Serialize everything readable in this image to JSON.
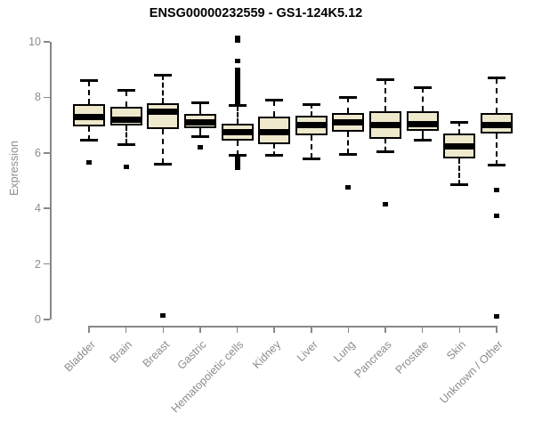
{
  "title": "ENSG00000232559 - GS1-124K5.12",
  "colors": {
    "background": "#ffffff",
    "box_fill": "#eee8cd",
    "box_border": "#000000",
    "median": "#000000",
    "axis": "#888888",
    "axis_text": "#8c8c8c",
    "title_text": "#000000"
  },
  "chart_data": {
    "type": "boxplot",
    "title": "ENSG00000232559 - GS1-124K5.12",
    "xlabel": "",
    "ylabel": "Expression",
    "ylim": [
      0,
      10
    ],
    "yticks": [
      0,
      2,
      4,
      6,
      8,
      10
    ],
    "grid": false,
    "legend": false,
    "categories": [
      "Bladder",
      "Brain",
      "Breast",
      "Gastric",
      "Hematopoietic cells",
      "Kidney",
      "Liver",
      "Lung",
      "Pancreas",
      "Prostate",
      "Skin",
      "Unknown / Other"
    ],
    "series": [
      {
        "name": "Bladder",
        "whisker_low": 6.45,
        "q1": 6.95,
        "median": 7.3,
        "q3": 7.75,
        "whisker_high": 8.6,
        "outliers": [
          5.65
        ]
      },
      {
        "name": "Brain",
        "whisker_low": 6.3,
        "q1": 7.0,
        "median": 7.2,
        "q3": 7.65,
        "whisker_high": 8.25,
        "outliers": [
          5.5
        ]
      },
      {
        "name": "Breast",
        "whisker_low": 5.6,
        "q1": 6.85,
        "median": 7.5,
        "q3": 7.8,
        "whisker_high": 8.8,
        "outliers": [
          0.15
        ]
      },
      {
        "name": "Gastric",
        "whisker_low": 6.6,
        "q1": 6.9,
        "median": 7.1,
        "q3": 7.4,
        "whisker_high": 7.8,
        "outliers": [
          6.2
        ]
      },
      {
        "name": "Hematopoietic cells",
        "whisker_low": 5.9,
        "q1": 6.45,
        "median": 6.75,
        "q3": 7.05,
        "whisker_high": 7.7,
        "outliers": [
          10.15,
          10.05,
          9.3,
          9.0,
          8.9,
          8.85,
          8.8,
          8.75,
          8.7,
          8.65,
          8.6,
          8.55,
          8.5,
          8.45,
          8.4,
          8.35,
          8.3,
          8.25,
          8.2,
          8.15,
          8.1,
          8.05,
          8.0,
          7.95,
          7.9,
          7.85,
          7.8,
          5.8,
          5.7,
          5.6,
          5.5,
          5.45
        ]
      },
      {
        "name": "Kidney",
        "whisker_low": 5.9,
        "q1": 6.3,
        "median": 6.75,
        "q3": 7.3,
        "whisker_high": 7.9,
        "outliers": []
      },
      {
        "name": "Liver",
        "whisker_low": 5.8,
        "q1": 6.65,
        "median": 7.0,
        "q3": 7.35,
        "whisker_high": 7.75,
        "outliers": []
      },
      {
        "name": "Lung",
        "whisker_low": 5.95,
        "q1": 6.75,
        "median": 7.1,
        "q3": 7.45,
        "whisker_high": 8.0,
        "outliers": [
          4.75
        ]
      },
      {
        "name": "Pancreas",
        "whisker_low": 6.05,
        "q1": 6.5,
        "median": 7.0,
        "q3": 7.5,
        "whisker_high": 8.65,
        "outliers": [
          4.15
        ]
      },
      {
        "name": "Prostate",
        "whisker_low": 6.45,
        "q1": 6.8,
        "median": 7.05,
        "q3": 7.5,
        "whisker_high": 8.35,
        "outliers": []
      },
      {
        "name": "Skin",
        "whisker_low": 4.85,
        "q1": 5.8,
        "median": 6.25,
        "q3": 6.7,
        "whisker_high": 7.1,
        "outliers": []
      },
      {
        "name": "Unknown / Other",
        "whisker_low": 5.55,
        "q1": 6.7,
        "median": 7.0,
        "q3": 7.45,
        "whisker_high": 8.7,
        "outliers": [
          4.65,
          3.75,
          0.1
        ]
      }
    ]
  }
}
